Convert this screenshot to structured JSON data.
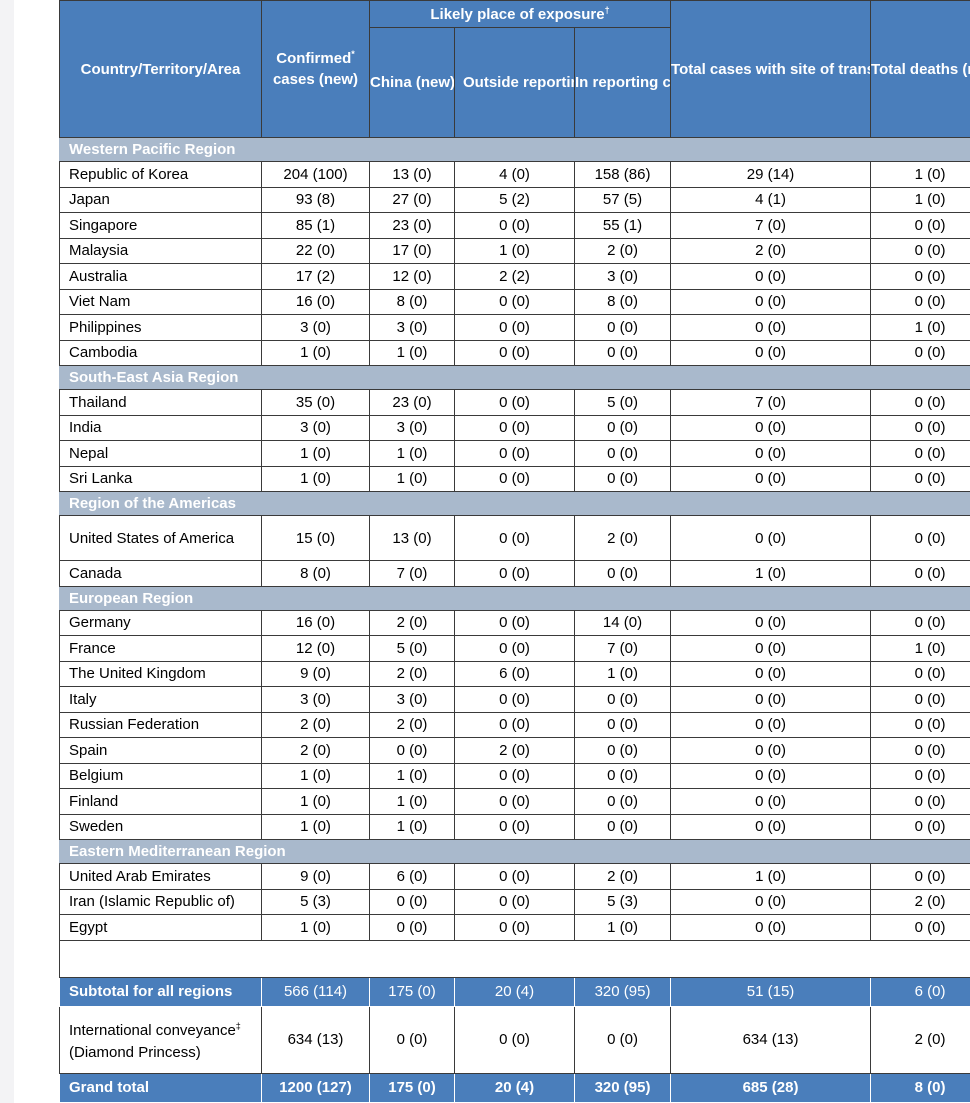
{
  "header": {
    "country": "Country/Territory/Area",
    "confirmed": "Confirmed",
    "confirmed_suffix": "cases (new)",
    "confirmed_mark": "*",
    "exposure_group": "Likely place of exposure",
    "exposure_mark": "†",
    "china": "China (new)",
    "outside": "Outside reporting country and outside China (new)",
    "in_reporting": "In reporting country (new)",
    "investigation": "Total cases with site of transmission under investigation (new)",
    "deaths": "Total deaths (new)"
  },
  "regions": [
    {
      "name": "Western Pacific Region",
      "rows": [
        [
          "Republic of Korea",
          "204 (100)",
          "13 (0)",
          "4 (0)",
          "158 (86)",
          "29 (14)",
          "1 (0)"
        ],
        [
          "Japan",
          "93 (8)",
          "27 (0)",
          "5 (2)",
          "57 (5)",
          "4 (1)",
          "1 (0)"
        ],
        [
          "Singapore",
          "85 (1)",
          "23 (0)",
          "0 (0)",
          "55 (1)",
          "7 (0)",
          "0 (0)"
        ],
        [
          "Malaysia",
          "22 (0)",
          "17 (0)",
          "1 (0)",
          "2 (0)",
          "2 (0)",
          "0 (0)"
        ],
        [
          "Australia",
          "17 (2)",
          "12 (0)",
          "2 (2)",
          "3 (0)",
          "0 (0)",
          "0 (0)"
        ],
        [
          "Viet Nam",
          "16 (0)",
          "8 (0)",
          "0 (0)",
          "8 (0)",
          "0 (0)",
          "0 (0)"
        ],
        [
          "Philippines",
          "3 (0)",
          "3 (0)",
          "0 (0)",
          "0 (0)",
          "0 (0)",
          "1 (0)"
        ],
        [
          "Cambodia",
          "1 (0)",
          "1 (0)",
          "0 (0)",
          "0 (0)",
          "0 (0)",
          "0 (0)"
        ]
      ]
    },
    {
      "name": "South-East Asia Region",
      "rows": [
        [
          "Thailand",
          "35 (0)",
          "23 (0)",
          "0 (0)",
          "5 (0)",
          "7 (0)",
          "0 (0)"
        ],
        [
          "India",
          "3 (0)",
          "3 (0)",
          "0 (0)",
          "0 (0)",
          "0 (0)",
          "0 (0)"
        ],
        [
          "Nepal",
          "1 (0)",
          "1 (0)",
          "0 (0)",
          "0 (0)",
          "0 (0)",
          "0 (0)"
        ],
        [
          "Sri Lanka",
          "1 (0)",
          "1 (0)",
          "0 (0)",
          "0 (0)",
          "0 (0)",
          "0 (0)"
        ]
      ]
    },
    {
      "name": "Region of the Americas",
      "rows": [
        [
          "United States of America",
          "15 (0)",
          "13 (0)",
          "0 (0)",
          "2 (0)",
          "0 (0)",
          "0 (0)"
        ],
        [
          "Canada",
          "8 (0)",
          "7 (0)",
          "0 (0)",
          "0 (0)",
          "1 (0)",
          "0 (0)"
        ]
      ]
    },
    {
      "name": "European Region",
      "rows": [
        [
          "Germany",
          "16 (0)",
          "2 (0)",
          "0 (0)",
          "14 (0)",
          "0 (0)",
          "0 (0)"
        ],
        [
          "France",
          "12 (0)",
          "5 (0)",
          "0 (0)",
          "7 (0)",
          "0 (0)",
          "1 (0)"
        ],
        [
          "The United Kingdom",
          "9 (0)",
          "2 (0)",
          "6 (0)",
          "1 (0)",
          "0 (0)",
          "0 (0)"
        ],
        [
          "Italy",
          "3 (0)",
          "3 (0)",
          "0 (0)",
          "0 (0)",
          "0 (0)",
          "0 (0)"
        ],
        [
          "Russian Federation",
          "2 (0)",
          "2 (0)",
          "0 (0)",
          "0 (0)",
          "0 (0)",
          "0 (0)"
        ],
        [
          "Spain",
          "2 (0)",
          "0 (0)",
          "2 (0)",
          "0 (0)",
          "0 (0)",
          "0 (0)"
        ],
        [
          "Belgium",
          "1 (0)",
          "1 (0)",
          "0 (0)",
          "0 (0)",
          "0 (0)",
          "0 (0)"
        ],
        [
          "Finland",
          "1 (0)",
          "1 (0)",
          "0 (0)",
          "0 (0)",
          "0 (0)",
          "0 (0)"
        ],
        [
          "Sweden",
          "1 (0)",
          "1 (0)",
          "0 (0)",
          "0 (0)",
          "0 (0)",
          "0 (0)"
        ]
      ]
    },
    {
      "name": "Eastern Mediterranean Region",
      "rows": [
        [
          "United Arab Emirates",
          "9 (0)",
          "6 (0)",
          "0 (0)",
          "2 (0)",
          "1 (0)",
          "0 (0)"
        ],
        [
          "Iran (Islamic Republic of)",
          "5 (3)",
          "0 (0)",
          "0 (0)",
          "5 (3)",
          "0 (0)",
          "2 (0)"
        ],
        [
          "Egypt",
          "1 (0)",
          "0 (0)",
          "0 (0)",
          "1 (0)",
          "0 (0)",
          "0 (0)"
        ]
      ]
    }
  ],
  "subtotal": [
    "Subtotal for all regions",
    "566 (114)",
    "175 (0)",
    "20 (4)",
    "320 (95)",
    "51 (15)",
    "6 (0)"
  ],
  "conveyance": {
    "label_prefix": "International conveyance",
    "label_mark": "‡",
    "label_suffix": " (Diamond Princess)",
    "values": [
      "634 (13)",
      "0 (0)",
      "0 (0)",
      "0 (0)",
      "634 (13)",
      "2 (0)"
    ]
  },
  "grand_total": [
    "Grand total",
    "1200 (127)",
    "175 (0)",
    "20 (4)",
    "320 (95)",
    "685 (28)",
    "8 (0)"
  ]
}
